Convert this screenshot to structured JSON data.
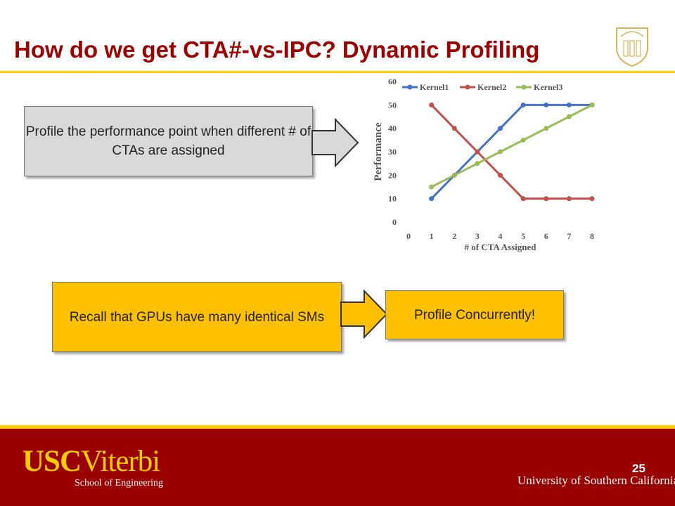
{
  "slide": {
    "title": "How do we get CTA#-vs-IPC? Dynamic Profiling",
    "page_number": "25"
  },
  "boxes": {
    "profile_point": "Profile the performance point when different # of CTAs are assigned",
    "recall": "Recall that GPUs have many identical SMs",
    "concurrent": "Profile Concurrently!"
  },
  "footer": {
    "usc_bold": "USC",
    "viterbi": "Viterbi",
    "school": "School of Engineering",
    "university": "University of Southern California"
  },
  "icons": {
    "seal": "usc-seal-icon",
    "arrow": "right-arrow-icon"
  },
  "colors": {
    "title": "#990000",
    "gold": "#FFCC00",
    "box_gold": "#FFC000",
    "box_gray": "#D9D9D9"
  },
  "chart_data": {
    "type": "line",
    "x": [
      1,
      2,
      3,
      4,
      5,
      6,
      7,
      8
    ],
    "series": [
      {
        "name": "Kernel1",
        "color": "#4472C4",
        "values": [
          10,
          20,
          30,
          40,
          50,
          50,
          50,
          50
        ]
      },
      {
        "name": "Kernel2",
        "color": "#C0504D",
        "values": [
          50,
          40,
          30,
          20,
          10,
          10,
          10,
          10
        ]
      },
      {
        "name": "Kernel3",
        "color": "#9BBB59",
        "values": [
          15,
          20,
          25,
          30,
          35,
          40,
          45,
          50
        ]
      }
    ],
    "xlabel": "# of CTA Assigned",
    "ylabel": "Performance",
    "xlim": [
      0,
      8
    ],
    "ylim": [
      0,
      60
    ],
    "xticks": [
      "0",
      "1",
      "2",
      "3",
      "4",
      "5",
      "6",
      "7",
      "8"
    ],
    "yticks": [
      "0",
      "10",
      "20",
      "30",
      "40",
      "50",
      "60"
    ],
    "legend": "top",
    "grid": false
  }
}
